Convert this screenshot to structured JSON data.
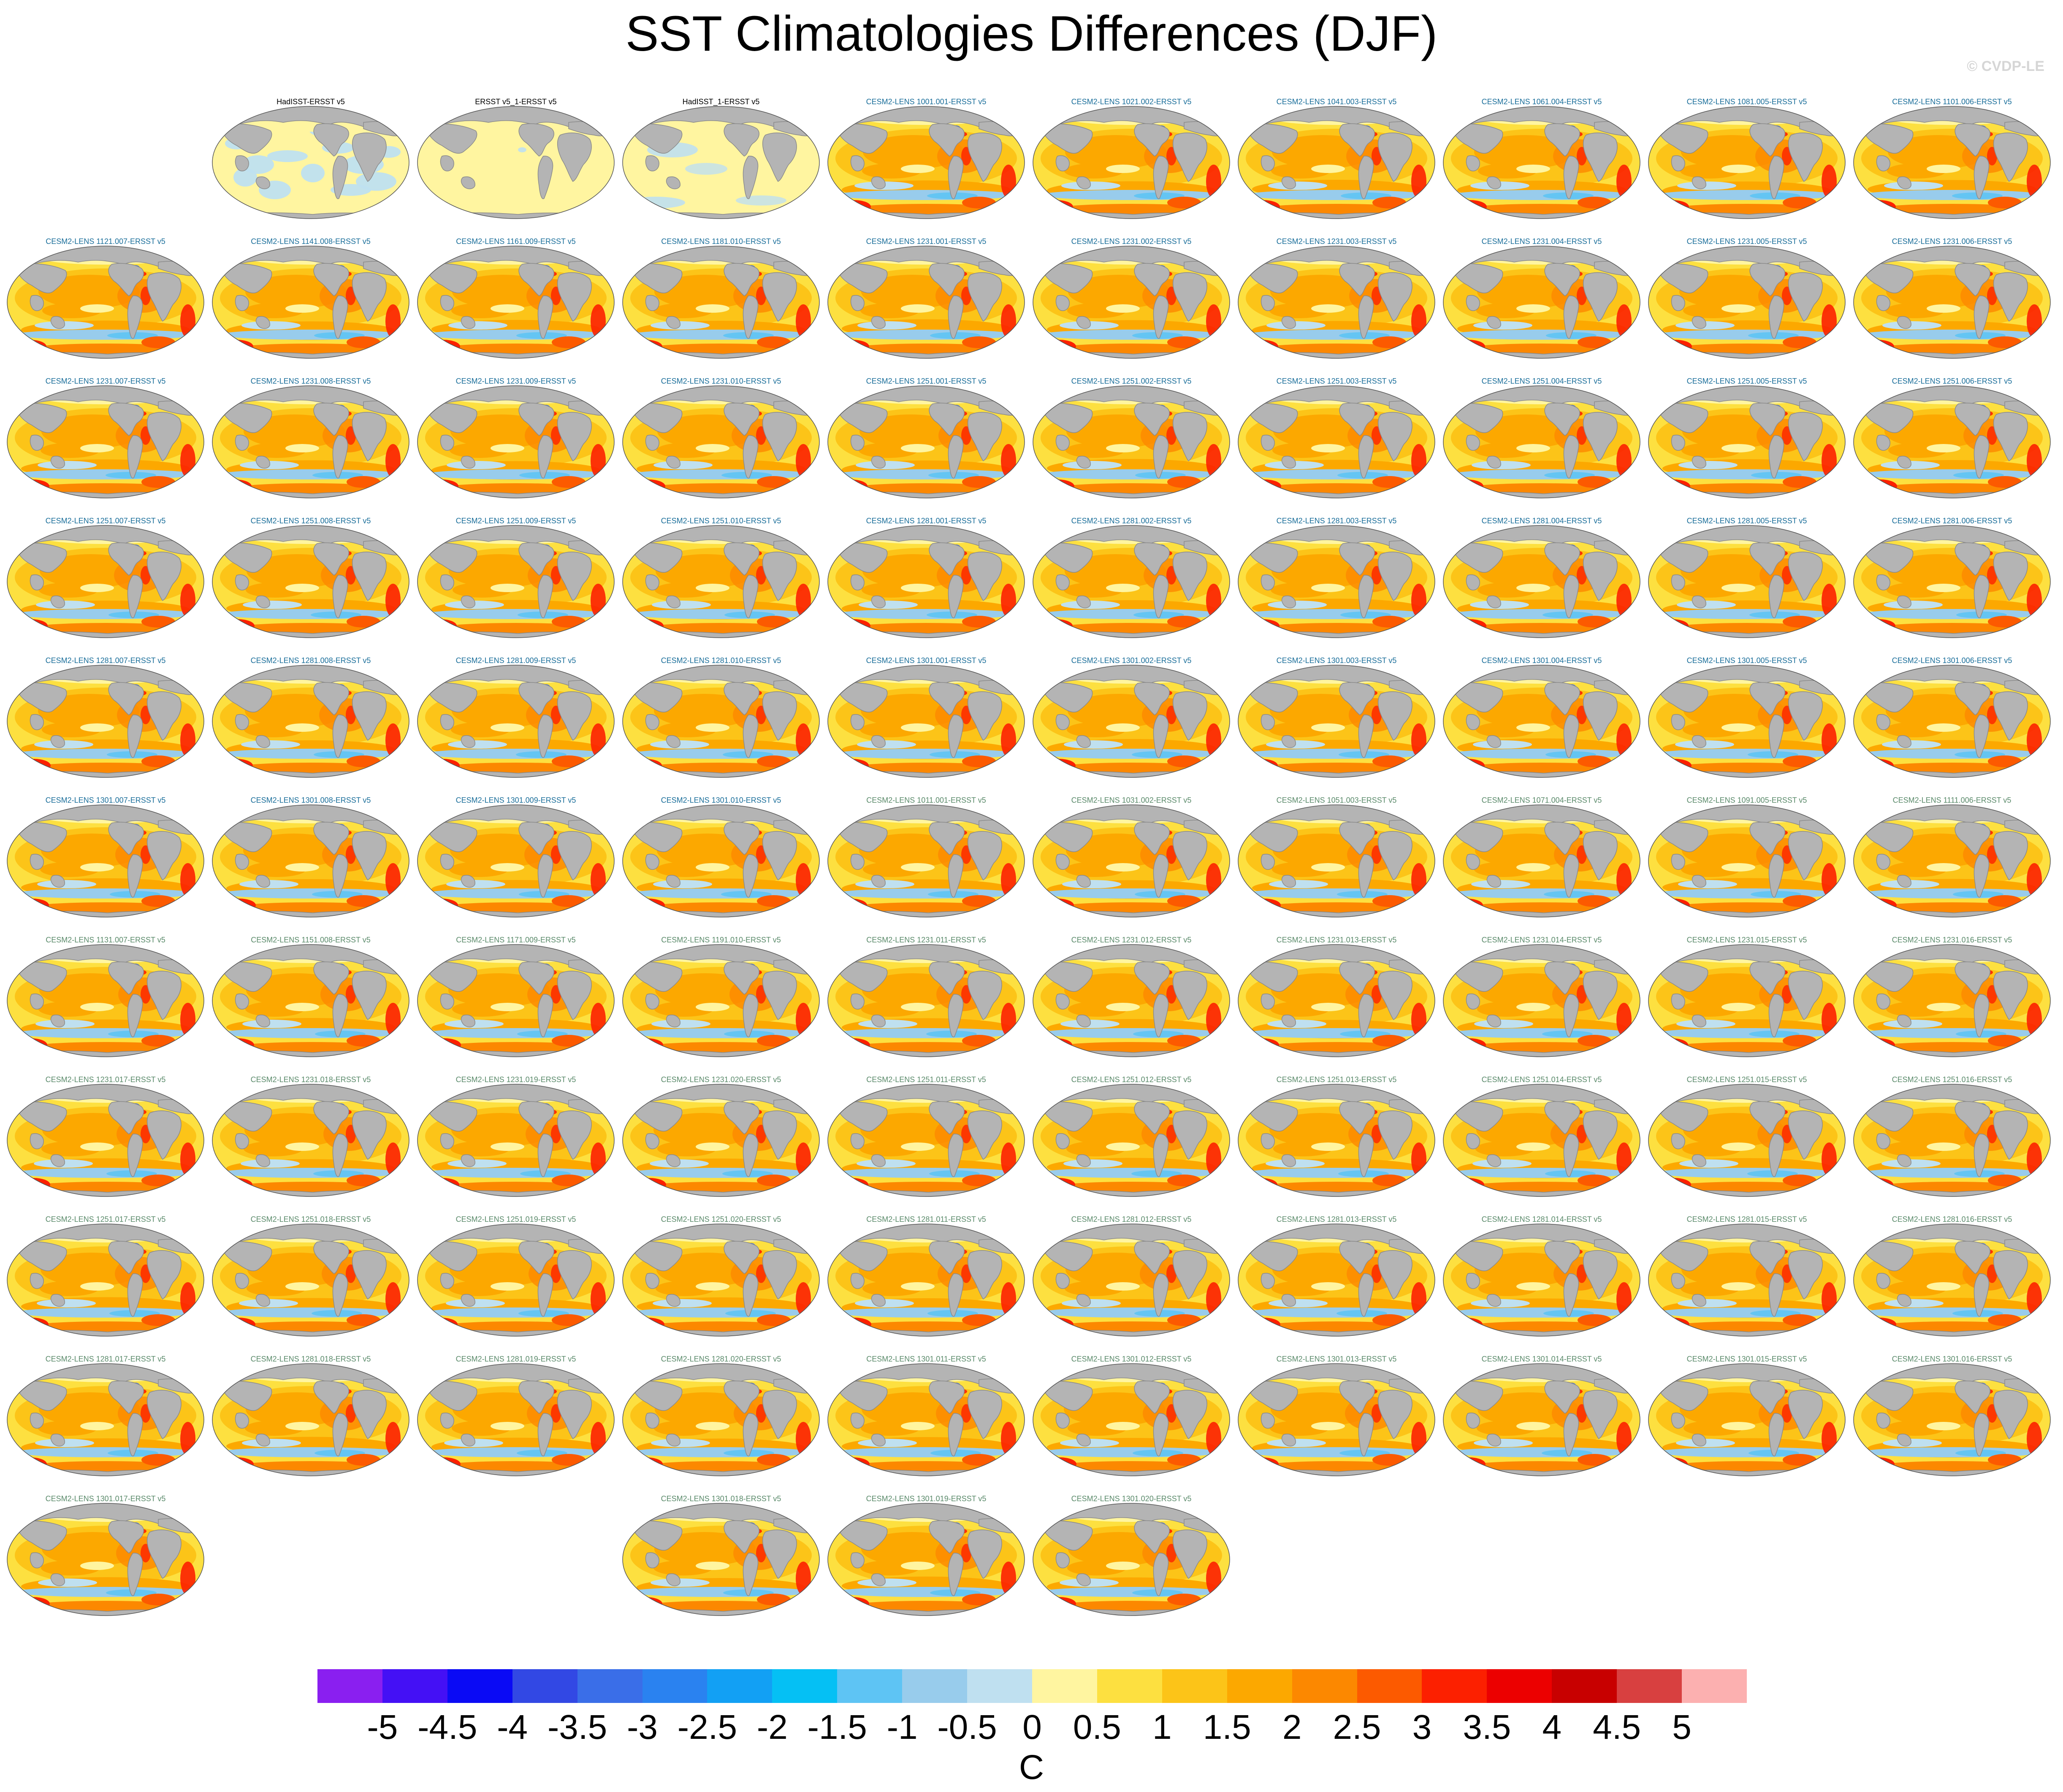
{
  "title": "SST Climatologies Differences (DJF)",
  "watermark": "© CVDP-LE",
  "colors": {
    "land": "#b4b4b4",
    "land_outline": "#8a8a8a",
    "observation_label": "#000000",
    "member_label_a": "#1a6e9a",
    "member_label_b": "#5a8a6a"
  },
  "panels": [
    {
      "label": "HadISST-ERSST v5",
      "kind": "obs_blue"
    },
    {
      "label": "ERSST v5_1-ERSST v5",
      "kind": "obs_flat"
    },
    {
      "label": "HadISST_1-ERSST v5",
      "kind": "obs_mixed"
    },
    {
      "label": "CESM2-LENS 1001.001-ERSST v5",
      "kind": "model_a"
    },
    {
      "label": "CESM2-LENS 1021.002-ERSST v5",
      "kind": "model_a"
    },
    {
      "label": "CESM2-LENS 1041.003-ERSST v5",
      "kind": "model_a"
    },
    {
      "label": "CESM2-LENS 1061.004-ERSST v5",
      "kind": "model_a"
    },
    {
      "label": "CESM2-LENS 1081.005-ERSST v5",
      "kind": "model_a"
    },
    {
      "label": "CESM2-LENS 1101.006-ERSST v5",
      "kind": "model_a"
    },
    {
      "label": "CESM2-LENS 1121.007-ERSST v5",
      "kind": "model_a"
    },
    {
      "label": "CESM2-LENS 1141.008-ERSST v5",
      "kind": "model_a"
    },
    {
      "label": "CESM2-LENS 1161.009-ERSST v5",
      "kind": "model_a"
    },
    {
      "label": "CESM2-LENS 1181.010-ERSST v5",
      "kind": "model_a"
    },
    {
      "label": "CESM2-LENS 1231.001-ERSST v5",
      "kind": "model_a"
    },
    {
      "label": "CESM2-LENS 1231.002-ERSST v5",
      "kind": "model_a"
    },
    {
      "label": "CESM2-LENS 1231.003-ERSST v5",
      "kind": "model_a"
    },
    {
      "label": "CESM2-LENS 1231.004-ERSST v5",
      "kind": "model_a"
    },
    {
      "label": "CESM2-LENS 1231.005-ERSST v5",
      "kind": "model_a"
    },
    {
      "label": "CESM2-LENS 1231.006-ERSST v5",
      "kind": "model_a"
    },
    {
      "label": "CESM2-LENS 1231.007-ERSST v5",
      "kind": "model_a"
    },
    {
      "label": "CESM2-LENS 1231.008-ERSST v5",
      "kind": "model_a"
    },
    {
      "label": "CESM2-LENS 1231.009-ERSST v5",
      "kind": "model_a"
    },
    {
      "label": "CESM2-LENS 1231.010-ERSST v5",
      "kind": "model_a"
    },
    {
      "label": "CESM2-LENS 1251.001-ERSST v5",
      "kind": "model_a"
    },
    {
      "label": "CESM2-LENS 1251.002-ERSST v5",
      "kind": "model_a"
    },
    {
      "label": "CESM2-LENS 1251.003-ERSST v5",
      "kind": "model_a"
    },
    {
      "label": "CESM2-LENS 1251.004-ERSST v5",
      "kind": "model_a"
    },
    {
      "label": "CESM2-LENS 1251.005-ERSST v5",
      "kind": "model_a"
    },
    {
      "label": "CESM2-LENS 1251.006-ERSST v5",
      "kind": "model_a"
    },
    {
      "label": "CESM2-LENS 1251.007-ERSST v5",
      "kind": "model_a"
    },
    {
      "label": "CESM2-LENS 1251.008-ERSST v5",
      "kind": "model_a"
    },
    {
      "label": "CESM2-LENS 1251.009-ERSST v5",
      "kind": "model_a"
    },
    {
      "label": "CESM2-LENS 1251.010-ERSST v5",
      "kind": "model_a"
    },
    {
      "label": "CESM2-LENS 1281.001-ERSST v5",
      "kind": "model_a"
    },
    {
      "label": "CESM2-LENS 1281.002-ERSST v5",
      "kind": "model_a"
    },
    {
      "label": "CESM2-LENS 1281.003-ERSST v5",
      "kind": "model_a"
    },
    {
      "label": "CESM2-LENS 1281.004-ERSST v5",
      "kind": "model_a"
    },
    {
      "label": "CESM2-LENS 1281.005-ERSST v5",
      "kind": "model_a"
    },
    {
      "label": "CESM2-LENS 1281.006-ERSST v5",
      "kind": "model_a"
    },
    {
      "label": "CESM2-LENS 1281.007-ERSST v5",
      "kind": "model_a"
    },
    {
      "label": "CESM2-LENS 1281.008-ERSST v5",
      "kind": "model_a"
    },
    {
      "label": "CESM2-LENS 1281.009-ERSST v5",
      "kind": "model_a"
    },
    {
      "label": "CESM2-LENS 1281.010-ERSST v5",
      "kind": "model_a"
    },
    {
      "label": "CESM2-LENS 1301.001-ERSST v5",
      "kind": "model_a"
    },
    {
      "label": "CESM2-LENS 1301.002-ERSST v5",
      "kind": "model_a"
    },
    {
      "label": "CESM2-LENS 1301.003-ERSST v5",
      "kind": "model_a"
    },
    {
      "label": "CESM2-LENS 1301.004-ERSST v5",
      "kind": "model_a"
    },
    {
      "label": "CESM2-LENS 1301.005-ERSST v5",
      "kind": "model_a"
    },
    {
      "label": "CESM2-LENS 1301.006-ERSST v5",
      "kind": "model_a"
    },
    {
      "label": "CESM2-LENS 1301.007-ERSST v5",
      "kind": "model_a"
    },
    {
      "label": "CESM2-LENS 1301.008-ERSST v5",
      "kind": "model_a"
    },
    {
      "label": "CESM2-LENS 1301.009-ERSST v5",
      "kind": "model_a"
    },
    {
      "label": "CESM2-LENS 1301.010-ERSST v5",
      "kind": "model_a"
    },
    {
      "label": "CESM2-LENS 1011.001-ERSST v5",
      "kind": "model_b"
    },
    {
      "label": "CESM2-LENS 1031.002-ERSST v5",
      "kind": "model_b"
    },
    {
      "label": "CESM2-LENS 1051.003-ERSST v5",
      "kind": "model_b"
    },
    {
      "label": "CESM2-LENS 1071.004-ERSST v5",
      "kind": "model_b"
    },
    {
      "label": "CESM2-LENS 1091.005-ERSST v5",
      "kind": "model_b"
    },
    {
      "label": "CESM2-LENS 1111.006-ERSST v5",
      "kind": "model_b"
    },
    {
      "label": "CESM2-LENS 1131.007-ERSST v5",
      "kind": "model_b"
    },
    {
      "label": "CESM2-LENS 1151.008-ERSST v5",
      "kind": "model_b"
    },
    {
      "label": "CESM2-LENS 1171.009-ERSST v5",
      "kind": "model_b"
    },
    {
      "label": "CESM2-LENS 1191.010-ERSST v5",
      "kind": "model_b"
    },
    {
      "label": "CESM2-LENS 1231.011-ERSST v5",
      "kind": "model_b"
    },
    {
      "label": "CESM2-LENS 1231.012-ERSST v5",
      "kind": "model_b"
    },
    {
      "label": "CESM2-LENS 1231.013-ERSST v5",
      "kind": "model_b"
    },
    {
      "label": "CESM2-LENS 1231.014-ERSST v5",
      "kind": "model_b"
    },
    {
      "label": "CESM2-LENS 1231.015-ERSST v5",
      "kind": "model_b"
    },
    {
      "label": "CESM2-LENS 1231.016-ERSST v5",
      "kind": "model_b"
    },
    {
      "label": "CESM2-LENS 1231.017-ERSST v5",
      "kind": "model_b"
    },
    {
      "label": "CESM2-LENS 1231.018-ERSST v5",
      "kind": "model_b"
    },
    {
      "label": "CESM2-LENS 1231.019-ERSST v5",
      "kind": "model_b"
    },
    {
      "label": "CESM2-LENS 1231.020-ERSST v5",
      "kind": "model_b"
    },
    {
      "label": "CESM2-LENS 1251.011-ERSST v5",
      "kind": "model_b"
    },
    {
      "label": "CESM2-LENS 1251.012-ERSST v5",
      "kind": "model_b"
    },
    {
      "label": "CESM2-LENS 1251.013-ERSST v5",
      "kind": "model_b"
    },
    {
      "label": "CESM2-LENS 1251.014-ERSST v5",
      "kind": "model_b"
    },
    {
      "label": "CESM2-LENS 1251.015-ERSST v5",
      "kind": "model_b"
    },
    {
      "label": "CESM2-LENS 1251.016-ERSST v5",
      "kind": "model_b"
    },
    {
      "label": "CESM2-LENS 1251.017-ERSST v5",
      "kind": "model_b"
    },
    {
      "label": "CESM2-LENS 1251.018-ERSST v5",
      "kind": "model_b"
    },
    {
      "label": "CESM2-LENS 1251.019-ERSST v5",
      "kind": "model_b"
    },
    {
      "label": "CESM2-LENS 1251.020-ERSST v5",
      "kind": "model_b"
    },
    {
      "label": "CESM2-LENS 1281.011-ERSST v5",
      "kind": "model_b"
    },
    {
      "label": "CESM2-LENS 1281.012-ERSST v5",
      "kind": "model_b"
    },
    {
      "label": "CESM2-LENS 1281.013-ERSST v5",
      "kind": "model_b"
    },
    {
      "label": "CESM2-LENS 1281.014-ERSST v5",
      "kind": "model_b"
    },
    {
      "label": "CESM2-LENS 1281.015-ERSST v5",
      "kind": "model_b"
    },
    {
      "label": "CESM2-LENS 1281.016-ERSST v5",
      "kind": "model_b"
    },
    {
      "label": "CESM2-LENS 1281.017-ERSST v5",
      "kind": "model_b"
    },
    {
      "label": "CESM2-LENS 1281.018-ERSST v5",
      "kind": "model_b"
    },
    {
      "label": "CESM2-LENS 1281.019-ERSST v5",
      "kind": "model_b"
    },
    {
      "label": "CESM2-LENS 1281.020-ERSST v5",
      "kind": "model_b"
    },
    {
      "label": "CESM2-LENS 1301.011-ERSST v5",
      "kind": "model_b"
    },
    {
      "label": "CESM2-LENS 1301.012-ERSST v5",
      "kind": "model_b"
    },
    {
      "label": "CESM2-LENS 1301.013-ERSST v5",
      "kind": "model_b"
    },
    {
      "label": "CESM2-LENS 1301.014-ERSST v5",
      "kind": "model_b"
    },
    {
      "label": "CESM2-LENS 1301.015-ERSST v5",
      "kind": "model_b"
    },
    {
      "label": "CESM2-LENS 1301.016-ERSST v5",
      "kind": "model_b"
    },
    {
      "label": "CESM2-LENS 1301.017-ERSST v5",
      "kind": "model_b"
    },
    {
      "label": "CESM2-LENS 1301.018-ERSST v5",
      "kind": "model_b"
    },
    {
      "label": "CESM2-LENS 1301.019-ERSST v5",
      "kind": "model_b"
    },
    {
      "label": "CESM2-LENS 1301.020-ERSST v5",
      "kind": "model_b"
    }
  ],
  "colorbar": {
    "unit": "C",
    "ticks": [
      "-5",
      "-4.5",
      "-4",
      "-3.5",
      "-3",
      "-2.5",
      "-2",
      "-1.5",
      "-1",
      "-0.5",
      "0",
      "0.5",
      "1",
      "1.5",
      "2",
      "2.5",
      "3",
      "3.5",
      "4",
      "4.5",
      "5"
    ],
    "colors": [
      "#8a1ff0",
      "#4410f5",
      "#0a0af5",
      "#3248e4",
      "#3a6ee8",
      "#2a82f0",
      "#12a0f4",
      "#05c0f4",
      "#5ec4f4",
      "#98ccec",
      "#bfe0f0",
      "#fff5a0",
      "#fde040",
      "#fcc418",
      "#fca800",
      "#fc8800",
      "#fc5a00",
      "#fc2000",
      "#ec0000",
      "#c80000",
      "#d84040",
      "#fcb0b0"
    ]
  }
}
